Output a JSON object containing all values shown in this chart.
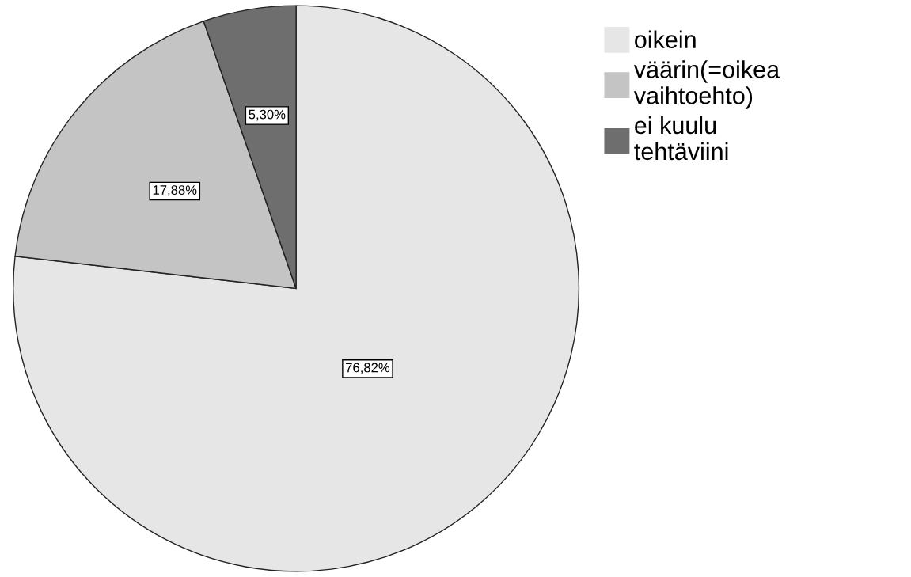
{
  "chart_data": {
    "type": "pie",
    "categories": [
      "oikein",
      "väärin(=oikea\nvaihtoehto)",
      "ei kuulu\ntehtäviini"
    ],
    "values": [
      76.82,
      17.88,
      5.3
    ],
    "value_labels": [
      "76,82%",
      "17,88%",
      "5,30%"
    ],
    "colors": [
      "#e6e6e6",
      "#c4c4c4",
      "#6e6e6e"
    ],
    "legend": "top right"
  }
}
